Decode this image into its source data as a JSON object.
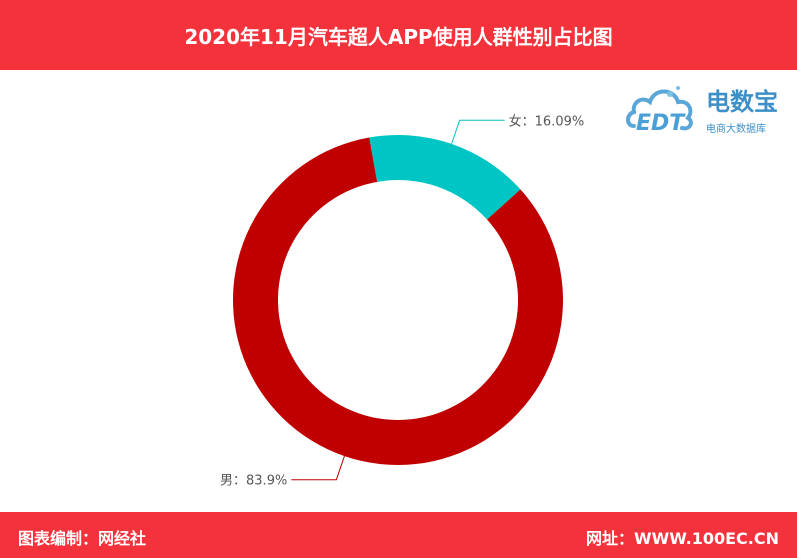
{
  "header": {
    "title": "2020年11月汽车超人APP使用人群性别占比图"
  },
  "footer": {
    "source_label": "图表编制：网经社",
    "site_label": "网址：WWW.100EC.CN"
  },
  "logo": {
    "mark": "EDT",
    "name": "电数宝",
    "tagline": "电商大数据库"
  },
  "colors": {
    "brand": "#f3323c",
    "male": "#c00000",
    "female": "#00c5c5"
  },
  "chart_data": {
    "type": "pie",
    "style": "donut",
    "title": "2020年11月汽车超人APP使用人群性别占比图",
    "slices": [
      {
        "label": "女",
        "value": 16.09,
        "display": "女：16.09%",
        "color": "#00c5c5"
      },
      {
        "label": "男",
        "value": 83.9,
        "display": "男：83.9%",
        "color": "#c00000"
      }
    ]
  }
}
